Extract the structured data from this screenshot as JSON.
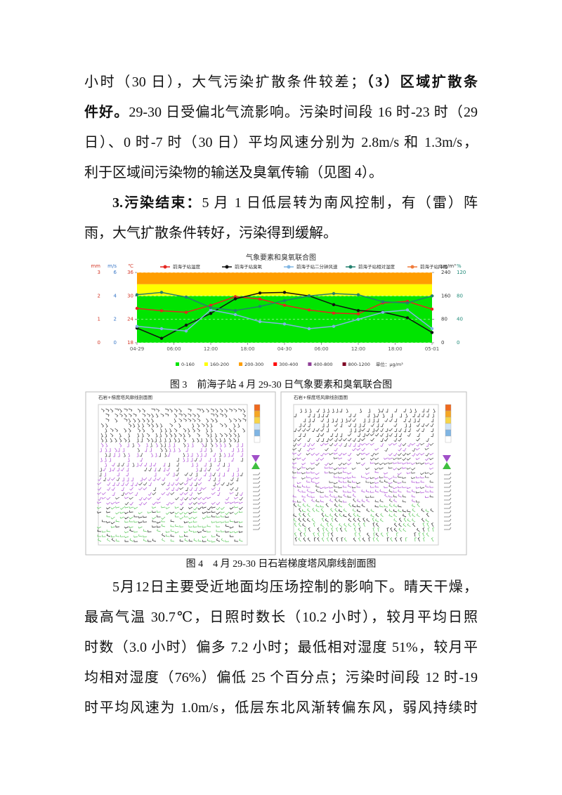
{
  "paragraphs": [
    {
      "lines": [
        [
          {
            "text": "小时（30 日），大气污染扩散条件较差；"
          },
          {
            "text": "（3）区域扩散条",
            "bold": true
          }
        ],
        [
          {
            "text": "件好。",
            "bold": true
          },
          {
            "text": "29-30 日受偏北气流影响。污染时间段 16 时-23 时（29"
          }
        ],
        [
          {
            "text": "日）、0 时-7 时（30 日）平均风速分别为 2.8m/s 和 1.3m/s，"
          }
        ],
        [
          {
            "text": "利于区域间污染物的输送及臭氧传输（见图 4）。"
          }
        ]
      ]
    },
    {
      "lines": [
        [
          {
            "text": "3.污染结束：",
            "bold": true
          },
          {
            "text": "5 月 1 日低层转为南风控制，有（雷）阵"
          }
        ],
        [
          {
            "text": "雨，大气扩散条件转好，污染得到缓解。"
          }
        ]
      ]
    },
    {
      "lines": [
        [
          {
            "text": "5月12日主要受近地面均压场控制的影响下。晴天干燥，"
          }
        ],
        [
          {
            "text": "最高气温 30.7℃，日照时数长（10.2 小时），较月平均日照"
          }
        ],
        [
          {
            "text": "时数（3.0 小时）偏多 7.2 小时；最低相对湿度 51%，较月平"
          }
        ],
        [
          {
            "text": "均相对湿度（76%）偏低 25 个百分点；污染时间段 12 时-19"
          }
        ],
        [
          {
            "text": "时平均风速为 1.0m/s，低层东北风渐转偏东风，弱风持续时"
          }
        ]
      ]
    }
  ],
  "chart_data": {
    "type": "line",
    "title": "气象要素和臭氧联合图",
    "x": [
      0,
      4,
      8,
      12,
      16,
      20,
      24,
      28,
      32,
      36,
      40,
      44,
      48
    ],
    "xlim": [
      0,
      48
    ],
    "xticks": [
      {
        "value": 0,
        "label": "04-29"
      },
      {
        "value": 6,
        "label": "06:00"
      },
      {
        "value": 12,
        "label": "12:00"
      },
      {
        "value": 18,
        "label": "18:00"
      },
      {
        "value": 24,
        "label": "04-30"
      },
      {
        "value": 30,
        "label": "06:00"
      },
      {
        "value": 36,
        "label": "12:00"
      },
      {
        "value": 42,
        "label": "18:00"
      },
      {
        "value": 48,
        "label": "05-01"
      }
    ],
    "axes": [
      {
        "unit": "mm",
        "lim": [
          0,
          3
        ],
        "ticks": [
          0,
          1,
          2,
          3
        ],
        "color": "#d43a2a"
      },
      {
        "unit": "m/s",
        "lim": [
          0,
          6
        ],
        "ticks": [
          0,
          2,
          4,
          6
        ],
        "color": "#3a78c8"
      },
      {
        "unit": "℃",
        "lim": [
          18,
          36
        ],
        "ticks": [
          18,
          24,
          30,
          36
        ],
        "color": "#d43a2a"
      },
      {
        "unit": "μg/m³",
        "lim": [
          0,
          240
        ],
        "ticks": [
          0,
          80,
          160,
          240
        ],
        "color": "#333333"
      },
      {
        "unit": "%",
        "lim": [
          0,
          120
        ],
        "ticks": [
          0,
          40,
          80,
          120
        ],
        "color": "#1f8a78"
      }
    ],
    "grid": true,
    "series": [
      {
        "name": "前海子站温度",
        "color": "#e52620",
        "axis": 2,
        "values": [
          26.8,
          26.2,
          25.8,
          27.6,
          29.8,
          29.2,
          27.6,
          26.4,
          25.6,
          25.4,
          28.2,
          28.6,
          26.6
        ]
      },
      {
        "name": "前海子站臭氧",
        "color": "#111111",
        "axis": 3,
        "values": [
          50,
          15,
          60,
          100,
          150,
          170,
          172,
          160,
          130,
          110,
          105,
          85,
          35
        ]
      },
      {
        "name": "前海子站二分钟风速",
        "color": "#7fb5e3",
        "axis": 1,
        "values": [
          1.4,
          1.2,
          1.0,
          2.8,
          2.4,
          1.8,
          1.6,
          1.2,
          1.4,
          2.0,
          2.6,
          2.8,
          1.2
        ]
      },
      {
        "name": "前海子站相对湿度",
        "color": "#23806e",
        "axis": 4,
        "values": [
          82,
          86,
          78,
          60,
          55,
          62,
          72,
          80,
          84,
          82,
          70,
          68,
          80
        ]
      },
      {
        "name": "前海子站降雨",
        "color": "#f07b3a",
        "axis": 0,
        "values": [
          null,
          null,
          null,
          null,
          null,
          null,
          null,
          null,
          null,
          null,
          null,
          null,
          null
        ]
      }
    ],
    "bands": [
      {
        "label": "0-160",
        "from": 0,
        "to": 160,
        "color": "#00e400"
      },
      {
        "label": "160-200",
        "from": 160,
        "to": 200,
        "color": "#ffff00"
      },
      {
        "label": "200-300",
        "from": 200,
        "to": 300,
        "color": "#ff9e00"
      },
      {
        "label": "300-400",
        "from": 300,
        "to": 400,
        "color": "#ff0000"
      },
      {
        "label": "400-800",
        "from": 400,
        "to": 800,
        "color": "#8f3f97"
      },
      {
        "label": "800-1200",
        "from": 800,
        "to": 1200,
        "color": "#7e0023"
      }
    ],
    "band_unit": "单位：μg/m³"
  },
  "figure3_caption": "图 3　前海子站 4 月 29-30 日气象要素和臭氧联合图",
  "figure4": {
    "panels": [
      {
        "title": "石岩+梯度塔风廓线剖面图"
      },
      {
        "title": "石岩+梯度塔风廓线剖面图"
      }
    ]
  },
  "figure4_caption": "图 4　4 月 29-30 日石岩梯度塔风廓线剖面图"
}
